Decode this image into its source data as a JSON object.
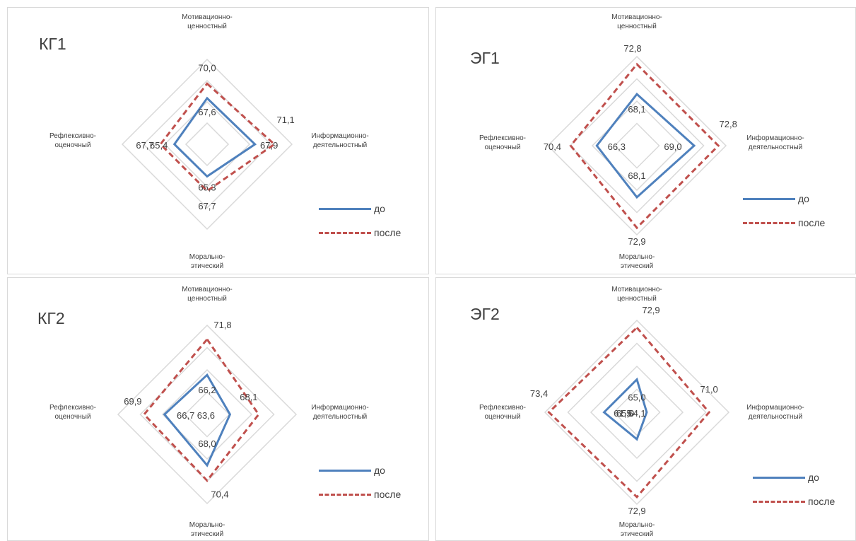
{
  "legend": {
    "before": "до",
    "after": "после"
  },
  "axes": [
    "Мотивационно-\nценностный",
    "Информационно-\nдеятельностный",
    "Морально-\nэтический",
    "Рефлексивно-\nоценочный"
  ],
  "colors": {
    "before": "#4f81bd",
    "after": "#c0504d",
    "grid": "#d9d9d9"
  },
  "chart_data": [
    {
      "type": "radar",
      "title": "КГ1",
      "axes": [
        "Мотивационно-ценностный",
        "Информационно-деятельностный",
        "Морально-этический",
        "Рефлексивно-оценочный"
      ],
      "series": [
        {
          "name": "до",
          "values": [
            67.6,
            67.9,
            65.3,
            65.4
          ],
          "labels": [
            "67,6",
            "67,9",
            "65,3",
            "65,4"
          ]
        },
        {
          "name": "после",
          "values": [
            70.0,
            71.1,
            67.7,
            67.7
          ],
          "labels": [
            "70,0",
            "71,1",
            "67,7",
            "67,7"
          ]
        }
      ]
    },
    {
      "type": "radar",
      "title": "ЭГ1",
      "axes": [
        "Мотивационно-ценностный",
        "Информационно-деятельностный",
        "Морально-этический",
        "Рефлексивно-оценочный"
      ],
      "series": [
        {
          "name": "до",
          "values": [
            68.1,
            69.0,
            68.1,
            66.3
          ],
          "labels": [
            "68,1",
            "69,0",
            "68,1",
            "66,3"
          ]
        },
        {
          "name": "после",
          "values": [
            72.8,
            72.8,
            72.9,
            70.4
          ],
          "labels": [
            "72,8",
            "72,8",
            "72,9",
            "70,4"
          ]
        }
      ]
    },
    {
      "type": "radar",
      "title": "КГ2",
      "axes": [
        "Мотивационно-ценностный",
        "Информационно-деятельностный",
        "Морально-этический",
        "Рефлексивно-оценочный"
      ],
      "series": [
        {
          "name": "до",
          "values": [
            66.2,
            63.6,
            68.0,
            66.7
          ],
          "labels": [
            "66,2",
            "63,6",
            "68,0",
            "66,7"
          ]
        },
        {
          "name": "после",
          "values": [
            71.8,
            68.1,
            70.4,
            69.9
          ],
          "labels": [
            "71,8",
            "68,1",
            "70,4",
            "69,9"
          ]
        }
      ]
    },
    {
      "type": "radar",
      "title": "ЭГ2",
      "axes": [
        "Мотивационно-ценностный",
        "Информационно-деятельностный",
        "Морально-этический",
        "Рефлексивно-оценочный"
      ],
      "series": [
        {
          "name": "до",
          "values": [
            65.0,
            61.5,
            64.1,
            65.0
          ],
          "labels": [
            "65,0",
            "61,5",
            "64,1",
            "65,0"
          ]
        },
        {
          "name": "после",
          "values": [
            72.9,
            71.0,
            72.9,
            73.4
          ],
          "labels": [
            "72,9",
            "71,0",
            "72,9",
            "73,4"
          ]
        }
      ]
    }
  ]
}
